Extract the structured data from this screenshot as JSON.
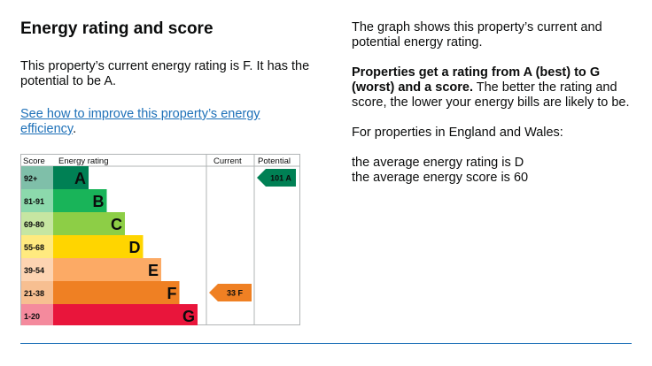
{
  "heading": "Energy rating and score",
  "current_text": "This property’s current energy rating is F. It has the potential to be A.",
  "link_text": "See how to improve this property’s energy efficiency",
  "link_suffix": ".",
  "right": {
    "graph_text": "The graph shows this property’s current and potential energy rating.",
    "bold_text": "Properties get a rating from A (best) to G (worst) and a score.",
    "rest_text": " The better the rating and score, the lower your energy bills are likely to be.",
    "region_text": "For properties in England and Wales:",
    "avg_rating": "the average energy rating is D",
    "avg_score": "the average energy score is 60"
  },
  "chart_data": {
    "type": "table",
    "headers": {
      "score": "Score",
      "rating": "Energy rating",
      "current": "Current",
      "potential": "Potential"
    },
    "bands": [
      {
        "score": "92+",
        "letter": "A",
        "color": "#008054",
        "score_bg": "#7fbfa9"
      },
      {
        "score": "81-91",
        "letter": "B",
        "color": "#19b459",
        "score_bg": "#8cd9ac"
      },
      {
        "score": "69-80",
        "letter": "C",
        "color": "#8dce46",
        "score_bg": "#c6e6a2"
      },
      {
        "score": "55-68",
        "letter": "D",
        "color": "#ffd500",
        "score_bg": "#ffea7f"
      },
      {
        "score": "39-54",
        "letter": "E",
        "color": "#fcaa65",
        "score_bg": "#fdd4b2"
      },
      {
        "score": "21-38",
        "letter": "F",
        "color": "#ef8023",
        "score_bg": "#f7bf91"
      },
      {
        "score": "1-20",
        "letter": "G",
        "color": "#e9153b",
        "score_bg": "#f48a9d"
      }
    ],
    "current": {
      "score": 33,
      "letter": "F",
      "label": "33 F",
      "color": "#ef8023"
    },
    "potential": {
      "score": 101,
      "letter": "A",
      "label": "101 A",
      "color": "#008054"
    }
  }
}
